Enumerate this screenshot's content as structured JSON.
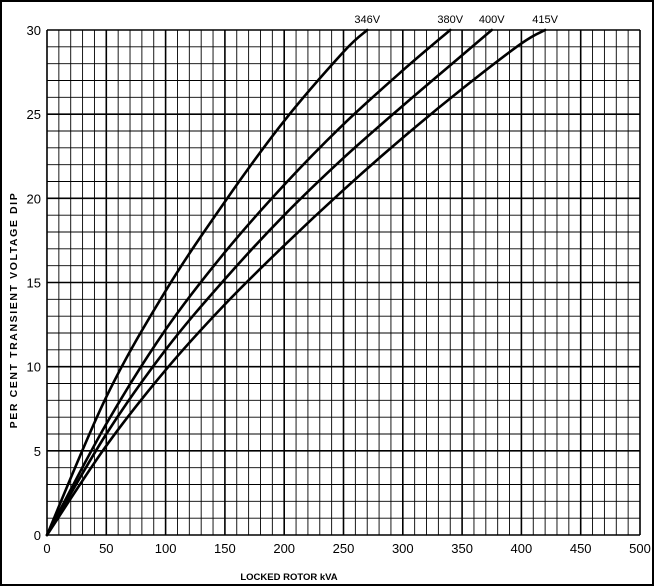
{
  "chart_data": {
    "type": "line",
    "title": "",
    "xlabel": "LOCKED ROTOR kVA",
    "ylabel": "PER CENT TRANSIENT VOLTAGE DIP",
    "xlim": [
      0,
      500
    ],
    "ylim": [
      0,
      30
    ],
    "x_ticks": [
      0,
      50,
      100,
      150,
      200,
      250,
      300,
      350,
      400,
      450,
      500
    ],
    "y_ticks": [
      0,
      5,
      10,
      15,
      20,
      25,
      30
    ],
    "grid": true,
    "minor_grid_divisions": 5,
    "legend": "series labels at top end of each curve",
    "line_color": "#000000",
    "series": [
      {
        "name": "346V",
        "x": [
          0,
          50,
          100,
          150,
          200,
          250,
          270
        ],
        "y": [
          0,
          8.2,
          14.5,
          19.8,
          24.6,
          28.7,
          30
        ]
      },
      {
        "name": "380V",
        "x": [
          0,
          50,
          100,
          150,
          200,
          250,
          300,
          340
        ],
        "y": [
          0,
          6.6,
          12.2,
          16.8,
          20.8,
          24.4,
          27.6,
          30
        ]
      },
      {
        "name": "400V",
        "x": [
          0,
          50,
          100,
          150,
          200,
          250,
          300,
          350,
          375
        ],
        "y": [
          0,
          6.0,
          11.0,
          15.2,
          19.0,
          22.4,
          25.5,
          28.5,
          30
        ]
      },
      {
        "name": "415V",
        "x": [
          0,
          50,
          100,
          150,
          200,
          250,
          300,
          350,
          400,
          420
        ],
        "y": [
          0,
          5.3,
          9.8,
          13.7,
          17.2,
          20.5,
          23.6,
          26.5,
          29.2,
          30
        ]
      }
    ]
  }
}
